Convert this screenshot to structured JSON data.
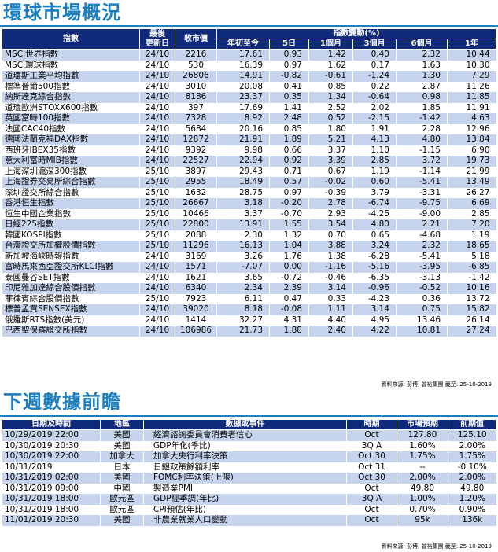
{
  "market": {
    "title": "環球市場概況",
    "headers": {
      "index": "指數",
      "last_update": [
        "最後",
        "更新日"
      ],
      "close": "收市價",
      "change_group": "指數變動(%)",
      "periods": [
        "年初至今",
        "5日",
        "1個月",
        "3個月",
        "6個月",
        "1年"
      ]
    },
    "rows": [
      [
        "MSCI世界指數",
        "24/10",
        "2216",
        "17.61",
        "0.93",
        "1.42",
        "0.40",
        "2.32",
        "10.44"
      ],
      [
        "MSCI環球指數",
        "24/10",
        "530",
        "16.39",
        "0.97",
        "1.62",
        "0.17",
        "1.63",
        "10.30"
      ],
      [
        "道瓊斯工業平均指數",
        "24/10",
        "26806",
        "14.91",
        "-0.82",
        "-0.61",
        "-1.24",
        "1.30",
        "7.29"
      ],
      [
        "標準普爾500指數",
        "24/10",
        "3010",
        "20.08",
        "0.41",
        "0.85",
        "0.22",
        "2.87",
        "11.26"
      ],
      [
        "納斯達克綜合指數",
        "24/10",
        "8186",
        "23.37",
        "0.35",
        "1.34",
        "-0.64",
        "0.98",
        "11.85"
      ],
      [
        "道瓊歐洲STOXX600指數",
        "24/10",
        "397",
        "17.69",
        "1.41",
        "2.52",
        "2.02",
        "1.85",
        "11.91"
      ],
      [
        "英國富時100指數",
        "24/10",
        "7328",
        "8.92",
        "2.48",
        "0.52",
        "-2.15",
        "-1.42",
        "4.63"
      ],
      [
        "法國CAC40指數",
        "24/10",
        "5684",
        "20.16",
        "0.85",
        "1.80",
        "1.91",
        "2.28",
        "12.96"
      ],
      [
        "德國法蘭克福DAX指數",
        "24/10",
        "12872",
        "21.91",
        "1.89",
        "5.21",
        "4.13",
        "4.80",
        "13.84"
      ],
      [
        "西班牙IBEX35指數",
        "24/10",
        "9392",
        "9.98",
        "0.66",
        "3.37",
        "1.10",
        "-1.15",
        "6.90"
      ],
      [
        "意大利富時MIB指數",
        "24/10",
        "22527",
        "22.94",
        "0.92",
        "3.39",
        "2.85",
        "3.72",
        "19.73"
      ],
      [
        "上海深圳滬深300指數",
        "25/10",
        "3897",
        "29.43",
        "0.71",
        "0.67",
        "1.19",
        "-1.14",
        "21.99"
      ],
      [
        "上海證券交易所綜合指數",
        "25/10",
        "2955",
        "18.49",
        "0.57",
        "-0.02",
        "0.60",
        "-5.41",
        "13.49"
      ],
      [
        "深圳證交所綜合指數",
        "25/10",
        "1632",
        "28.75",
        "0.97",
        "-0.39",
        "3.79",
        "-3.31",
        "26.27"
      ],
      [
        "香港恒生指數",
        "25/10",
        "26667",
        "3.18",
        "-0.20",
        "2.78",
        "-6.74",
        "-9.75",
        "6.69"
      ],
      [
        "恆生中國企業指數",
        "25/10",
        "10466",
        "3.37",
        "-0.70",
        "2.93",
        "-4.25",
        "-9.00",
        "2.85"
      ],
      [
        "日經225指數",
        "25/10",
        "22800",
        "13.91",
        "1.55",
        "3.54",
        "4.80",
        "2.21",
        "7.20"
      ],
      [
        "韓國KOSPI指數",
        "25/10",
        "2088",
        "2.30",
        "1.32",
        "0.70",
        "0.65",
        "-4.68",
        "1.19"
      ],
      [
        "台灣證交所加權股價指數",
        "25/10",
        "11296",
        "16.13",
        "1.04",
        "3.88",
        "3.24",
        "2.32",
        "18.65"
      ],
      [
        "新加坡海峽時報指數",
        "24/10",
        "3169",
        "3.26",
        "1.76",
        "1.38",
        "-6.28",
        "-5.41",
        "5.18"
      ],
      [
        "富時馬來西亞證交所KLCI指數",
        "24/10",
        "1571",
        "-7.07",
        "0.00",
        "-1.16",
        "-5.16",
        "-3.95",
        "-6.85"
      ],
      [
        "泰國曼谷SET指數",
        "24/10",
        "1621",
        "3.65",
        "-0.72",
        "-0.46",
        "-6.35",
        "-3.13",
        "-1.42"
      ],
      [
        "印尼雅加達綜合股價指數",
        "24/10",
        "6340",
        "2.34",
        "2.39",
        "3.14",
        "-0.96",
        "-0.52",
        "10.16"
      ],
      [
        "菲律賓綜合股價指數",
        "25/10",
        "7923",
        "6.11",
        "0.47",
        "0.33",
        "-4.23",
        "0.36",
        "13.72"
      ],
      [
        "標普孟買SENSEX指數",
        "24/10",
        "39020",
        "8.18",
        "-0.08",
        "1.11",
        "3.14",
        "0.75",
        "15.82"
      ],
      [
        "俄羅斯RTS指數(美元)",
        "24/10",
        "1414",
        "32.27",
        "4.31",
        "4.40",
        "4.95",
        "13.46",
        "26.14"
      ],
      [
        "巴西聖保羅證交所指數",
        "24/10",
        "106986",
        "21.73",
        "1.88",
        "2.40",
        "4.22",
        "10.81",
        "27.24"
      ]
    ],
    "source": "資料來源: 彭博, 曾裕集團 截至: 25-10-2019"
  },
  "preview": {
    "title": "下週數據前瞻",
    "headers": [
      "日期及時間",
      "地區",
      "數據或事件",
      "時期",
      "市場預期",
      "前期值"
    ],
    "rows": [
      [
        "10/29/2019 22:00",
        "美國",
        "經濟諮詢委員會消費者信心",
        "Oct",
        "127.80",
        "125.10"
      ],
      [
        "10/30/2019 20:30",
        "美國",
        "GDP年化(季比)",
        "3Q A",
        "1.60%",
        "2.00%"
      ],
      [
        "10/30/2019 22:00",
        "加拿大",
        "加拿大央行利率決策",
        "Oct 30",
        "1.75%",
        "1.75%"
      ],
      [
        "10/31/2019",
        "日本",
        "日銀政策餘額利率",
        "Oct 31",
        "--",
        "-0.10%"
      ],
      [
        "10/31/2019 02:00",
        "美國",
        "FOMC利率決策(上限)",
        "Oct 30",
        "2.00%",
        "2.00%"
      ],
      [
        "10/31/2019 09:00",
        "中國",
        "製造業PMI",
        "Oct",
        "49.80",
        "49.80"
      ],
      [
        "10/31/2019 18:00",
        "歐元區",
        "GDP經季調(年比)",
        "3Q A",
        "1.00%",
        "1.20%"
      ],
      [
        "10/31/2019 18:00",
        "歐元區",
        "CPI預估(年比)",
        "Oct",
        "0.70%",
        "0.90%"
      ],
      [
        "11/01/2019 20:30",
        "美國",
        "非農業就業人口變動",
        "Oct",
        "95k",
        "136k"
      ]
    ],
    "source": "資料來源: 彭博, 曾裕集團 截至: 25-10-2019"
  }
}
